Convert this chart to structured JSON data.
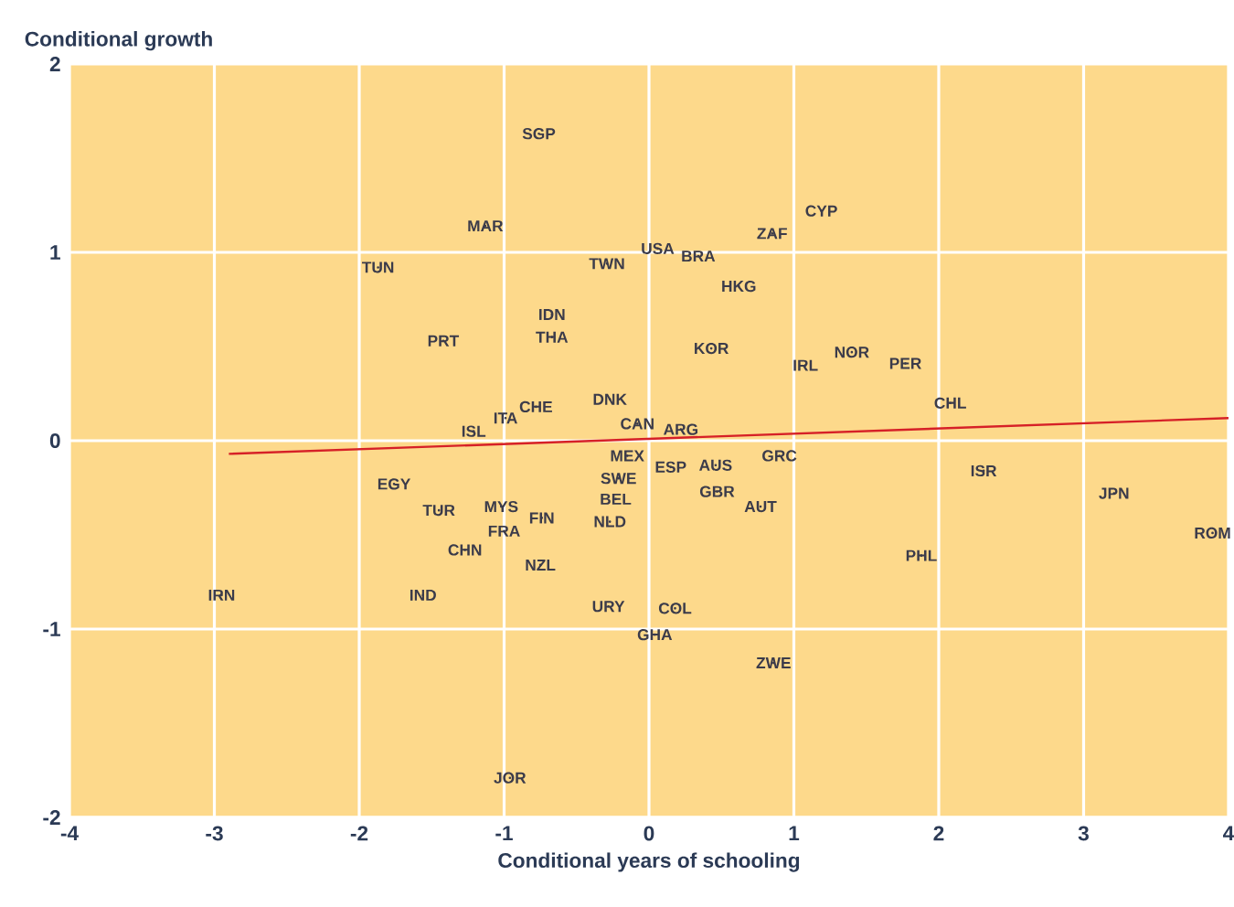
{
  "chart_data": {
    "type": "scatter",
    "xlabel": "Conditional years of schooling",
    "ylabel": "Conditional growth",
    "xlim": [
      -4,
      4
    ],
    "ylim": [
      -2,
      2
    ],
    "xticks": [
      -4,
      -3,
      -2,
      -1,
      0,
      1,
      2,
      3,
      4
    ],
    "yticks": [
      -2,
      -1,
      0,
      1,
      2
    ],
    "grid": true,
    "series": [
      {
        "marker": "none",
        "color": "#3b3b4a",
        "x": [
          -0.76,
          -1.13,
          -1.87,
          -0.29,
          -0.67,
          -0.67,
          -1.42,
          -0.27,
          -0.78,
          -0.99,
          -1.21,
          -0.08,
          0.06,
          0.34,
          0.85,
          1.19,
          0.62,
          0.43,
          1.08,
          1.4,
          1.77,
          2.08,
          0.22,
          -1.76,
          -1.45,
          -1.02,
          -1.0,
          -0.74,
          -1.27,
          -0.75,
          -1.56,
          -2.95,
          -0.28,
          -0.96,
          -0.15,
          -0.21,
          -0.23,
          -0.27,
          0.15,
          0.46,
          0.9,
          0.47,
          0.77,
          2.31,
          3.21,
          3.89,
          1.88,
          0.18,
          0.04,
          0.86
        ],
        "values": [
          1.63,
          1.14,
          0.92,
          0.94,
          0.67,
          0.55,
          0.53,
          0.22,
          0.18,
          0.12,
          0.05,
          0.09,
          1.02,
          0.98,
          1.1,
          1.22,
          0.82,
          0.49,
          0.4,
          0.47,
          0.41,
          0.2,
          0.06,
          -0.23,
          -0.37,
          -0.35,
          -0.48,
          -0.41,
          -0.58,
          -0.66,
          -0.82,
          -0.82,
          -0.88,
          -1.79,
          -0.08,
          -0.2,
          -0.31,
          -0.43,
          -0.14,
          -0.13,
          -0.08,
          -0.27,
          -0.35,
          -0.16,
          -0.28,
          -0.49,
          -0.61,
          -0.89,
          -1.03,
          -1.18
        ],
        "value_labels": [
          "SGP",
          "MAR",
          "TUN",
          "TWN",
          "IDN",
          "THA",
          "PRT",
          "DNK",
          "CHE",
          "ITA",
          "ISL",
          "CAN",
          "USA",
          "BRA",
          "ZAF",
          "CYP",
          "HKG",
          "KOR",
          "IRL",
          "NOR",
          "PER",
          "CHL",
          "ARG",
          "EGY",
          "TUR",
          "MYS",
          "FRA",
          "FIN",
          "CHN",
          "NZL",
          "IND",
          "IRN",
          "URY",
          "JOR",
          "MEX",
          "SWE",
          "BEL",
          "NLD",
          "ESP",
          "AUS",
          "GRC",
          "GBR",
          "AUT",
          "ISR",
          "JPN",
          "ROM",
          "PHL",
          "COL",
          "GHA",
          "ZWE"
        ]
      },
      {
        "type": "line",
        "color": "#d62027",
        "line_style": "solid",
        "x": [
          -2.9,
          4
        ],
        "values": [
          -0.07,
          0.12
        ]
      }
    ]
  }
}
